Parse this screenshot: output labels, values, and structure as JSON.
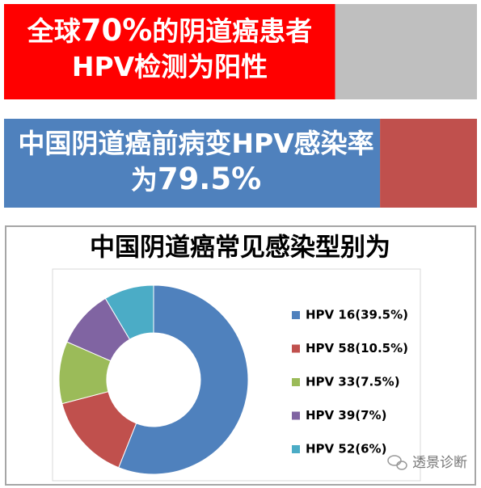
{
  "chart_data": [
    {
      "type": "bar",
      "orientation": "horizontal",
      "xlim": [
        0,
        100
      ],
      "values": [
        70
      ],
      "value_labels": [
        "70%"
      ],
      "color": "#ff0000",
      "rest_color": "#bfbfbf",
      "title_before": "全球",
      "title_after": "的阴道癌患者HPV检测为阳性"
    },
    {
      "type": "bar",
      "orientation": "horizontal",
      "xlim": [
        0,
        100
      ],
      "values": [
        79.5
      ],
      "value_labels": [
        "79.5%"
      ],
      "color": "#4f81bd",
      "rest_color": "#c0504d",
      "title_before": "中国阴道癌前病变HPV感染率为",
      "title_after": ""
    },
    {
      "type": "donut",
      "title": "中国阴道癌常见感染型别为",
      "categories": [
        "HPV 16(39.5%)",
        "HPV 58(10.5%)",
        "HPV 33(7.5%)",
        "HPV 39(7%)",
        "HPV 52(6%)"
      ],
      "values": [
        39.5,
        10.5,
        7.5,
        7,
        6
      ],
      "colors": [
        "#4f81bd",
        "#c0504d",
        "#9bbb59",
        "#8064a2",
        "#4bacc6"
      ]
    }
  ],
  "watermark": "透景诊断"
}
